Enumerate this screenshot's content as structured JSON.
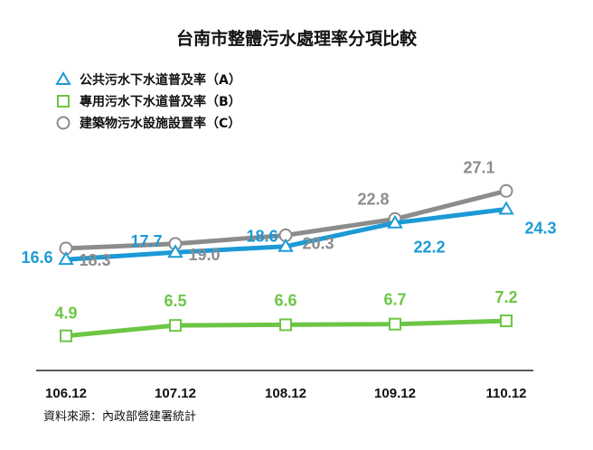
{
  "chart_data": {
    "type": "line",
    "title": "台南市整體污水處理率分項比較",
    "xlabel": "",
    "ylabel": "",
    "categories": [
      "106.12",
      "107.12",
      "108.12",
      "109.12",
      "110.12"
    ],
    "ylim": [
      0,
      30
    ],
    "grid": false,
    "legend_position": "top-left",
    "series": [
      {
        "name": "公共污水下水道普及率（A）",
        "values": [
          16.6,
          17.7,
          18.6,
          22.2,
          24.3
        ],
        "color": "#1c9ad6",
        "marker": "triangle",
        "labels": [
          "16.6",
          "17.7",
          "18.6",
          "22.2",
          "24.3"
        ]
      },
      {
        "name": "專用污水下水道普及率（B）",
        "values": [
          4.9,
          6.5,
          6.6,
          6.7,
          7.2
        ],
        "color": "#6cc644",
        "marker": "square",
        "labels": [
          "4.9",
          "6.5",
          "6.6",
          "6.7",
          "7.2"
        ]
      },
      {
        "name": "建築物污水設施設置率（C）",
        "values": [
          18.3,
          19.0,
          20.3,
          22.8,
          27.1
        ],
        "color": "#8c8c8c",
        "marker": "circle",
        "labels": [
          "18.3",
          "19.0",
          "20.3",
          "22.8",
          "27.1"
        ]
      }
    ],
    "source": "資料來源：內政部營建署統計"
  }
}
